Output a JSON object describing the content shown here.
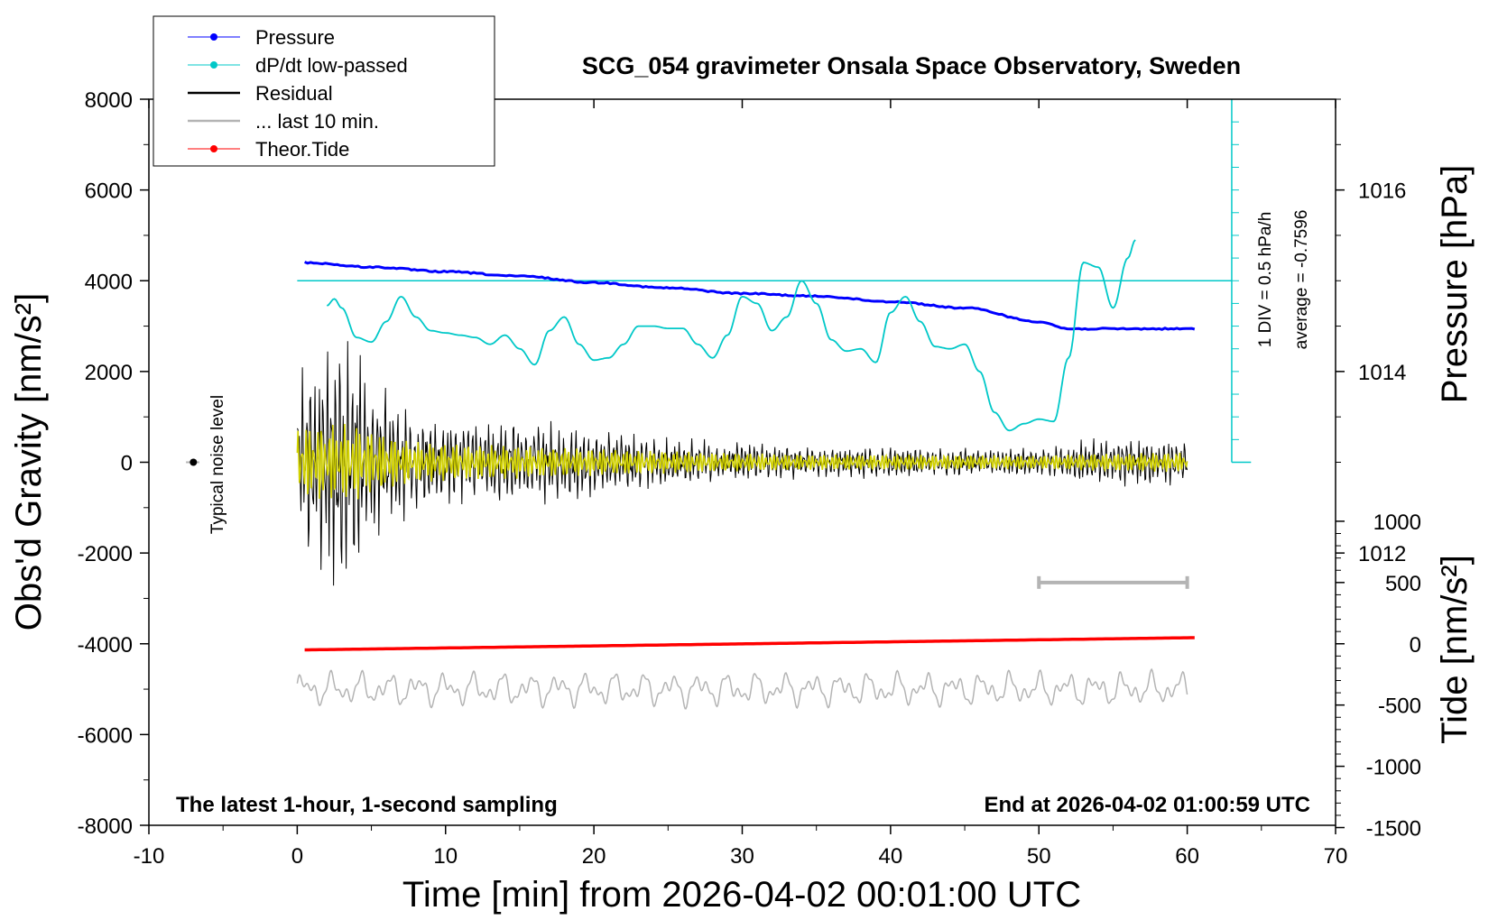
{
  "chart_data": {
    "type": "line",
    "title": "SCG_054 gravimeter Onsala Space Observatory, Sweden",
    "xlabel": "Time [min] from 2026-04-02 00:01:00 UTC",
    "ylabel_left": "Obs'd Gravity [nm/s²]",
    "ylabel_right_pressure": "Pressure [hPa]",
    "ylabel_right_tide": "Tide [nm/s²]",
    "xlim": [
      -10,
      70
    ],
    "ylim": [
      -8000,
      8000
    ],
    "x_ticks": [
      "-10",
      "0",
      "10",
      "20",
      "30",
      "40",
      "50",
      "60",
      "70"
    ],
    "y_ticks_left": [
      "8000",
      "6000",
      "4000",
      "2000",
      "0",
      "-2000",
      "-4000",
      "-6000",
      "-8000"
    ],
    "pressure_ticks": [
      "1016",
      "1014",
      "1012"
    ],
    "tide_ticks": [
      "1000",
      "500",
      "0",
      "-500",
      "-1000",
      "-1500"
    ],
    "footer_left": "The latest 1-hour, 1-second sampling",
    "footer_right": "End at 2026-04-02 01:00:59 UTC",
    "noise_label": "Typical noise level",
    "div_label": "1 DIV = 0.5 hPa/h",
    "average_label": "average = -0.7596",
    "legend": [
      {
        "label": "Pressure",
        "color": "#0000ff",
        "marker": true
      },
      {
        "label": "dP/dt low-passed",
        "color": "#00c8c8",
        "marker": true
      },
      {
        "label": "Residual",
        "color": "#000000",
        "marker": false
      },
      {
        "label": "... last 10 min.",
        "color": "#b4b4b4",
        "marker": false
      },
      {
        "label": "Theor.Tide",
        "color": "#ff0000",
        "marker": true
      }
    ],
    "series": [
      {
        "name": "Pressure",
        "unit": "hPa",
        "color": "#0000ff",
        "x": [
          0.5,
          5,
          10,
          15,
          20,
          25,
          30,
          35,
          40,
          45,
          50,
          52,
          55,
          60.5
        ],
        "y": [
          1015.2,
          1015.15,
          1015.1,
          1015.05,
          1014.98,
          1014.92,
          1014.86,
          1014.83,
          1014.77,
          1014.7,
          1014.55,
          1014.47,
          1014.47,
          1014.47
        ]
      },
      {
        "name": "dP/dt low-passed",
        "unit": "nm/s² (plotted)",
        "color": "#00c8c8",
        "x": [
          2,
          2.5,
          3,
          4,
          5,
          6,
          7,
          8,
          9,
          10,
          11,
          12,
          13,
          14,
          15,
          16,
          17,
          18,
          19,
          20,
          21,
          22,
          23,
          24,
          25,
          26,
          27,
          28,
          29,
          30,
          31,
          32,
          33,
          34,
          35,
          36,
          37,
          38,
          39,
          40,
          41,
          42,
          43,
          44,
          45,
          46,
          47,
          48,
          49,
          50,
          51,
          52,
          53,
          54,
          55,
          56,
          56.5
        ],
        "y": [
          3450,
          3600,
          3400,
          2750,
          2650,
          3100,
          3650,
          3200,
          2900,
          2850,
          2800,
          2750,
          2600,
          2800,
          2500,
          2150,
          2900,
          3200,
          2600,
          2250,
          2300,
          2600,
          3000,
          3000,
          2950,
          2950,
          2600,
          2300,
          2800,
          3650,
          3500,
          2900,
          3200,
          4000,
          3500,
          2700,
          2450,
          2500,
          2200,
          3300,
          3650,
          3100,
          2550,
          2500,
          2600,
          2000,
          1100,
          700,
          850,
          950,
          900,
          2300,
          4400,
          4300,
          3400,
          4500,
          4900
        ]
      },
      {
        "name": "Residual",
        "unit": "nm/s²",
        "color": "#000000",
        "envelope_x": [
          0,
          2,
          4,
          5,
          8,
          12,
          16,
          20,
          25,
          30,
          35,
          40,
          45,
          50,
          55,
          60
        ],
        "envelope_amp": [
          1800,
          2500,
          2800,
          1800,
          1000,
          900,
          900,
          700,
          550,
          400,
          330,
          330,
          300,
          300,
          550,
          500
        ]
      },
      {
        "name": "... last 10 min.",
        "unit": "nm/s²",
        "color": "#b4b4b4",
        "offset_y": -5000,
        "x_range": [
          0,
          60
        ],
        "amplitude": 350,
        "bar_x": [
          50,
          60
        ],
        "bar_y": -2650
      },
      {
        "name": "Theor.Tide",
        "unit": "nm/s²",
        "color": "#ff0000",
        "x": [
          0.5,
          60.5
        ],
        "y": [
          -50,
          50
        ]
      },
      {
        "name": "yellow",
        "unit": "nm/s²",
        "color": "#d2d200",
        "envelope_x": [
          0,
          2,
          4,
          5,
          8,
          12,
          16,
          20,
          25,
          30,
          35,
          40,
          45,
          50,
          55,
          60
        ],
        "envelope_amp": [
          800,
          850,
          850,
          700,
          450,
          400,
          350,
          300,
          250,
          200,
          170,
          170,
          160,
          150,
          200,
          220
        ]
      }
    ]
  }
}
